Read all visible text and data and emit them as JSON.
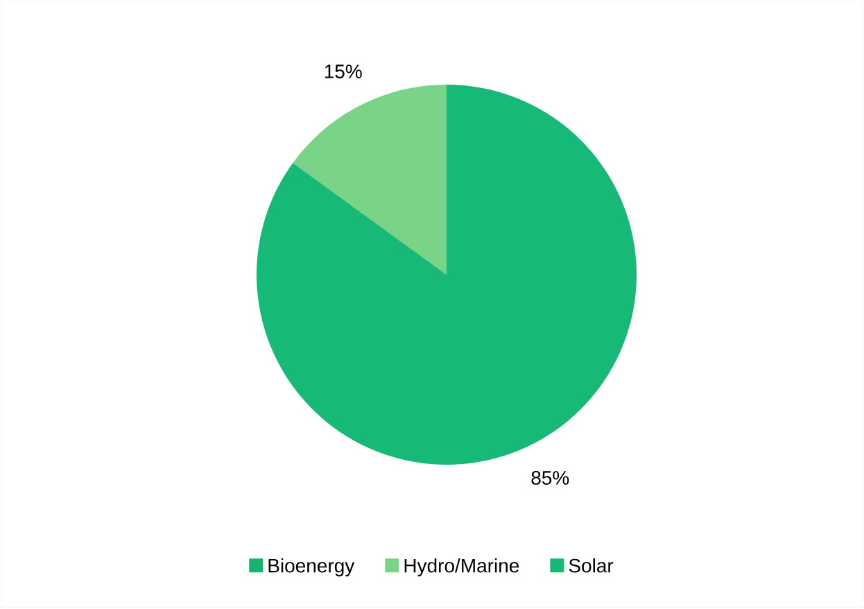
{
  "chart_data": {
    "type": "pie",
    "categories": [
      "Bioenergy",
      "Hydro/Marine",
      "Solar"
    ],
    "values": [
      0,
      15,
      85
    ],
    "colors": [
      "#16b46e",
      "#7ad488",
      "#17b977"
    ],
    "value_labels": [
      null,
      "15%",
      "85%"
    ],
    "legend": "bottom"
  }
}
